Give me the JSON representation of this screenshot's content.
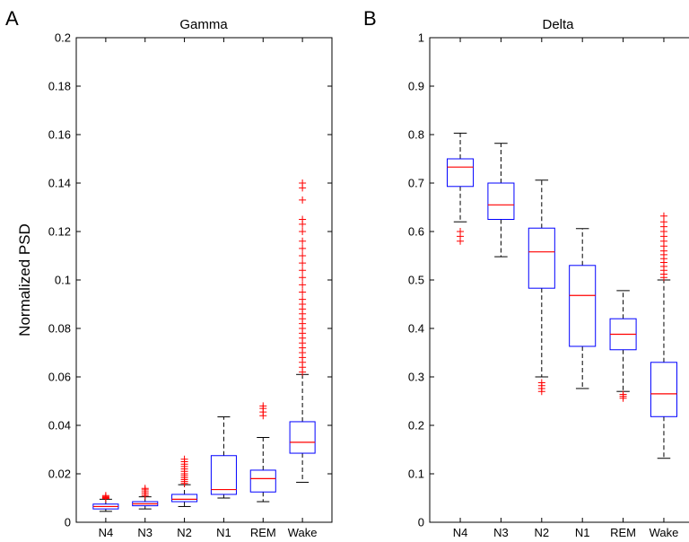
{
  "chart_data": [
    {
      "type": "box",
      "panel_label": "A",
      "title": "Gamma",
      "xlabel": "",
      "ylabel": "Normalized PSD",
      "ylim": [
        0,
        0.2
      ],
      "yticks": [
        0,
        0.02,
        0.04,
        0.06,
        0.08,
        0.1,
        0.12,
        0.14,
        0.16,
        0.18,
        0.2
      ],
      "ytick_labels": [
        "0",
        "0.02",
        "0.04",
        "0.06",
        "0.08",
        "0.1",
        "0.12",
        "0.14",
        "0.16",
        "0.18",
        "0.2"
      ],
      "categories": [
        "N4",
        "N3",
        "N2",
        "N1",
        "REM",
        "Wake"
      ],
      "boxes": [
        {
          "q1": 0.0055,
          "median": 0.0065,
          "q3": 0.0075,
          "whisker_low": 0.0045,
          "whisker_high": 0.0095,
          "outliers": [
            0.0098,
            0.0102,
            0.0106,
            0.011
          ]
        },
        {
          "q1": 0.0068,
          "median": 0.0076,
          "q3": 0.0085,
          "whisker_low": 0.0055,
          "whisker_high": 0.0105,
          "outliers": [
            0.011,
            0.0118,
            0.0126,
            0.0134,
            0.014
          ]
        },
        {
          "q1": 0.0085,
          "median": 0.0095,
          "q3": 0.0115,
          "whisker_low": 0.0065,
          "whisker_high": 0.0155,
          "outliers": [
            0.016,
            0.0168,
            0.0176,
            0.0184,
            0.0192,
            0.02,
            0.021,
            0.022,
            0.023,
            0.024,
            0.025,
            0.026
          ]
        },
        {
          "q1": 0.0115,
          "median": 0.0135,
          "q3": 0.0275,
          "whisker_low": 0.01,
          "whisker_high": 0.0435,
          "outliers": []
        },
        {
          "q1": 0.0125,
          "median": 0.018,
          "q3": 0.0215,
          "whisker_low": 0.0085,
          "whisker_high": 0.035,
          "outliers": [
            0.044,
            0.0455,
            0.047,
            0.048
          ]
        },
        {
          "q1": 0.0285,
          "median": 0.033,
          "q3": 0.0415,
          "whisker_low": 0.0165,
          "whisker_high": 0.061,
          "outliers": [
            0.062,
            0.064,
            0.066,
            0.068,
            0.07,
            0.072,
            0.074,
            0.076,
            0.078,
            0.08,
            0.082,
            0.084,
            0.086,
            0.088,
            0.09,
            0.092,
            0.095,
            0.098,
            0.101,
            0.104,
            0.107,
            0.11,
            0.113,
            0.116,
            0.12,
            0.123,
            0.125,
            0.133,
            0.138,
            0.14
          ]
        }
      ],
      "colors": {
        "box": "#0000ff",
        "median": "#ff0000",
        "whisker": "#000000",
        "outlier": "#ff0000"
      }
    },
    {
      "type": "box",
      "panel_label": "B",
      "title": "Delta",
      "xlabel": "",
      "ylabel": "",
      "ylim": [
        0,
        1
      ],
      "yticks": [
        0,
        0.1,
        0.2,
        0.3,
        0.4,
        0.5,
        0.6,
        0.7,
        0.8,
        0.9,
        1
      ],
      "ytick_labels": [
        "0",
        "0.1",
        "0.2",
        "0.3",
        "0.4",
        "0.5",
        "0.6",
        "0.7",
        "0.8",
        "0.9",
        "1"
      ],
      "categories": [
        "N4",
        "N3",
        "N2",
        "N1",
        "REM",
        "Wake"
      ],
      "boxes": [
        {
          "q1": 0.693,
          "median": 0.733,
          "q3": 0.75,
          "whisker_low": 0.62,
          "whisker_high": 0.803,
          "outliers": [
            0.6,
            0.59,
            0.58
          ]
        },
        {
          "q1": 0.625,
          "median": 0.655,
          "q3": 0.7,
          "whisker_low": 0.548,
          "whisker_high": 0.782,
          "outliers": []
        },
        {
          "q1": 0.483,
          "median": 0.558,
          "q3": 0.607,
          "whisker_low": 0.3,
          "whisker_high": 0.706,
          "outliers": [
            0.288,
            0.282,
            0.276,
            0.27
          ]
        },
        {
          "q1": 0.363,
          "median": 0.468,
          "q3": 0.53,
          "whisker_low": 0.276,
          "whisker_high": 0.606,
          "outliers": []
        },
        {
          "q1": 0.356,
          "median": 0.388,
          "q3": 0.42,
          "whisker_low": 0.27,
          "whisker_high": 0.478,
          "outliers": [
            0.264,
            0.26,
            0.256
          ]
        },
        {
          "q1": 0.218,
          "median": 0.265,
          "q3": 0.33,
          "whisker_low": 0.132,
          "whisker_high": 0.5,
          "outliers": [
            0.505,
            0.512,
            0.52,
            0.528,
            0.536,
            0.544,
            0.552,
            0.56,
            0.57,
            0.58,
            0.59,
            0.6,
            0.61,
            0.62,
            0.632
          ]
        }
      ],
      "colors": {
        "box": "#0000ff",
        "median": "#ff0000",
        "whisker": "#000000",
        "outlier": "#ff0000"
      }
    }
  ]
}
